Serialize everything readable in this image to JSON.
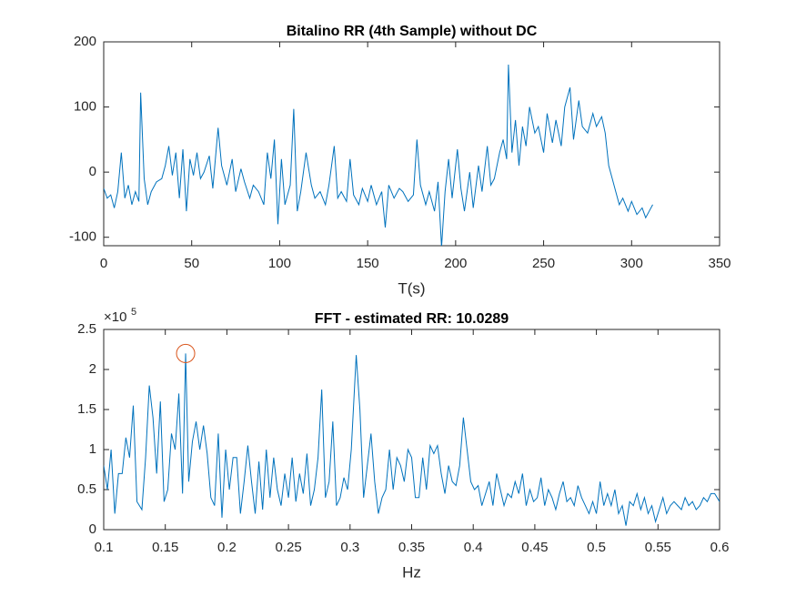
{
  "chart_data": [
    {
      "type": "line",
      "title": "Bitalino RR (4th Sample) without DC",
      "xlabel": "T(s)",
      "color": "#0072bd",
      "x": [
        0,
        2,
        4,
        6,
        8,
        10,
        12,
        14,
        16,
        18,
        20,
        21,
        23,
        25,
        27,
        30,
        33,
        35,
        37,
        39,
        41,
        43,
        45,
        47,
        49,
        51,
        53,
        55,
        57,
        60,
        62,
        65,
        67,
        70,
        73,
        75,
        78,
        80,
        83,
        85,
        88,
        91,
        93,
        95,
        97,
        99,
        101,
        103,
        106,
        108,
        110,
        112,
        115,
        118,
        120,
        123,
        126,
        128,
        131,
        133,
        135,
        138,
        140,
        142,
        145,
        147,
        150,
        152,
        155,
        158,
        160,
        162,
        165,
        168,
        170,
        173,
        176,
        178,
        180,
        183,
        185,
        188,
        190,
        192,
        194,
        196,
        198,
        201,
        203,
        205,
        208,
        210,
        213,
        215,
        218,
        220,
        222,
        225,
        227,
        229,
        230,
        232,
        234,
        236,
        238,
        240,
        242,
        245,
        247,
        250,
        252,
        255,
        257,
        260,
        262,
        265,
        267,
        270,
        272,
        275,
        278,
        280,
        283,
        285,
        287,
        289,
        291,
        293,
        295,
        298,
        300,
        303,
        306,
        308,
        310,
        312
      ],
      "values": [
        -25,
        -40,
        -35,
        -55,
        -30,
        30,
        -40,
        -20,
        -50,
        -30,
        -45,
        122,
        -10,
        -50,
        -30,
        -15,
        -10,
        10,
        40,
        -5,
        30,
        -40,
        35,
        -60,
        20,
        -5,
        30,
        -10,
        0,
        25,
        -25,
        68,
        10,
        -20,
        20,
        -30,
        5,
        -15,
        -40,
        -20,
        -30,
        -50,
        30,
        -10,
        50,
        -80,
        20,
        -50,
        -20,
        97,
        -60,
        -30,
        30,
        -20,
        -40,
        -30,
        -50,
        -20,
        40,
        -40,
        -30,
        -45,
        20,
        -35,
        -50,
        -25,
        -45,
        -20,
        -50,
        -30,
        -85,
        -20,
        -40,
        -25,
        -30,
        -45,
        -35,
        50,
        -20,
        -50,
        -30,
        -60,
        -15,
        -115,
        -30,
        20,
        -40,
        35,
        -25,
        -60,
        0,
        -55,
        10,
        -30,
        40,
        -20,
        -10,
        30,
        50,
        20,
        165,
        30,
        80,
        10,
        70,
        40,
        100,
        60,
        70,
        30,
        90,
        45,
        80,
        40,
        100,
        130,
        50,
        110,
        70,
        60,
        90,
        70,
        85,
        60,
        10,
        -10,
        -30,
        -50,
        -40,
        -60,
        -45,
        -65,
        -55,
        -70,
        -60,
        -50
      ],
      "xlim": [
        0,
        350
      ],
      "ylim": [
        -113,
        200
      ],
      "xticks": [
        0,
        50,
        100,
        150,
        200,
        250,
        300,
        350
      ],
      "yticks": [
        -100,
        0,
        100,
        200
      ]
    },
    {
      "type": "line",
      "title": "FFT - estimated RR: 10.0289",
      "xlabel": "Hz",
      "color": "#0072bd",
      "y_exponent_base": "×10",
      "y_exponent": "5",
      "x": [
        0.1,
        0.103,
        0.106,
        0.109,
        0.112,
        0.115,
        0.118,
        0.121,
        0.124,
        0.127,
        0.131,
        0.134,
        0.137,
        0.14,
        0.143,
        0.146,
        0.149,
        0.152,
        0.155,
        0.158,
        0.161,
        0.164,
        0.1665,
        0.169,
        0.172,
        0.175,
        0.178,
        0.181,
        0.184,
        0.187,
        0.19,
        0.193,
        0.196,
        0.199,
        0.202,
        0.205,
        0.208,
        0.211,
        0.214,
        0.217,
        0.22,
        0.223,
        0.226,
        0.229,
        0.232,
        0.235,
        0.238,
        0.241,
        0.244,
        0.247,
        0.25,
        0.253,
        0.256,
        0.259,
        0.262,
        0.265,
        0.268,
        0.271,
        0.274,
        0.277,
        0.28,
        0.283,
        0.286,
        0.289,
        0.292,
        0.295,
        0.298,
        0.301,
        0.305,
        0.308,
        0.311,
        0.314,
        0.317,
        0.32,
        0.323,
        0.326,
        0.329,
        0.332,
        0.335,
        0.338,
        0.341,
        0.344,
        0.347,
        0.35,
        0.353,
        0.356,
        0.359,
        0.362,
        0.365,
        0.368,
        0.371,
        0.374,
        0.377,
        0.38,
        0.383,
        0.386,
        0.389,
        0.392,
        0.395,
        0.398,
        0.401,
        0.404,
        0.407,
        0.41,
        0.413,
        0.416,
        0.419,
        0.422,
        0.425,
        0.428,
        0.431,
        0.434,
        0.437,
        0.44,
        0.443,
        0.446,
        0.449,
        0.452,
        0.455,
        0.458,
        0.461,
        0.464,
        0.467,
        0.47,
        0.473,
        0.476,
        0.479,
        0.482,
        0.485,
        0.488,
        0.491,
        0.494,
        0.497,
        0.5,
        0.503,
        0.506,
        0.509,
        0.512,
        0.515,
        0.518,
        0.521,
        0.524,
        0.527,
        0.53,
        0.533,
        0.536,
        0.539,
        0.542,
        0.545,
        0.548,
        0.551,
        0.554,
        0.557,
        0.56,
        0.563,
        0.566,
        0.569,
        0.572,
        0.575,
        0.578,
        0.581,
        0.584,
        0.587,
        0.59,
        0.593,
        0.596,
        0.6
      ],
      "values": [
        0.8,
        0.5,
        1.0,
        0.2,
        0.7,
        0.7,
        1.15,
        0.9,
        1.55,
        0.35,
        0.25,
        0.9,
        1.8,
        1.4,
        0.7,
        1.6,
        0.35,
        0.5,
        1.2,
        1.0,
        1.7,
        0.45,
        2.2,
        0.6,
        1.1,
        1.35,
        1.0,
        1.3,
        0.95,
        0.4,
        0.3,
        1.2,
        0.15,
        1.0,
        0.5,
        0.9,
        0.9,
        0.2,
        0.6,
        1.05,
        0.6,
        0.2,
        0.85,
        0.25,
        1.0,
        0.4,
        0.9,
        0.5,
        0.3,
        0.7,
        0.4,
        0.9,
        0.35,
        0.7,
        0.45,
        0.95,
        0.3,
        0.5,
        0.9,
        1.75,
        0.4,
        0.6,
        1.35,
        0.3,
        0.4,
        0.65,
        0.5,
        1.0,
        2.18,
        1.5,
        0.4,
        0.8,
        1.2,
        0.6,
        0.2,
        0.4,
        0.5,
        1.0,
        0.5,
        0.9,
        0.8,
        0.6,
        1.0,
        0.9,
        0.4,
        0.4,
        0.9,
        0.5,
        1.05,
        0.95,
        1.05,
        0.7,
        0.45,
        0.8,
        0.6,
        0.55,
        0.8,
        1.4,
        1.0,
        0.6,
        0.5,
        0.55,
        0.3,
        0.45,
        0.6,
        0.3,
        0.7,
        0.5,
        0.3,
        0.45,
        0.4,
        0.6,
        0.45,
        0.7,
        0.3,
        0.5,
        0.35,
        0.4,
        0.65,
        0.3,
        0.5,
        0.4,
        0.25,
        0.45,
        0.6,
        0.35,
        0.4,
        0.3,
        0.55,
        0.4,
        0.3,
        0.2,
        0.35,
        0.2,
        0.6,
        0.3,
        0.45,
        0.3,
        0.5,
        0.2,
        0.3,
        0.05,
        0.35,
        0.3,
        0.45,
        0.25,
        0.4,
        0.2,
        0.3,
        0.1,
        0.25,
        0.4,
        0.2,
        0.3,
        0.35,
        0.3,
        0.25,
        0.4,
        0.3,
        0.35,
        0.25,
        0.3,
        0.4,
        0.35,
        0.45,
        0.45,
        0.35
      ],
      "marker": {
        "x": 0.1665,
        "y": 2.2,
        "color": "#d95319"
      },
      "xlim": [
        0.1,
        0.6
      ],
      "ylim": [
        0,
        2.5
      ],
      "xticks": [
        0.1,
        0.15,
        0.2,
        0.25,
        0.3,
        0.35,
        0.4,
        0.45,
        0.5,
        0.55,
        0.6
      ],
      "yticks": [
        0,
        0.5,
        1,
        1.5,
        2,
        2.5
      ]
    }
  ]
}
